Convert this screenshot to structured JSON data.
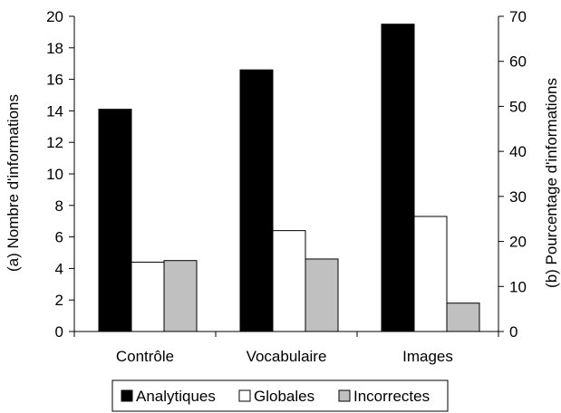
{
  "chart_data": {
    "type": "bar",
    "categories": [
      "Contrôle",
      "Vocabulaire",
      "Images"
    ],
    "series": [
      {
        "name": "Analytiques",
        "values": [
          14.1,
          16.6,
          19.5
        ],
        "color": "#000000"
      },
      {
        "name": "Globales",
        "values": [
          4.4,
          6.4,
          7.3
        ],
        "color": "#ffffff"
      },
      {
        "name": "Incorrectes",
        "values": [
          4.5,
          4.6,
          1.8
        ],
        "color": "#c0c0c0"
      }
    ],
    "ylabel": "(a) Nombre d'informations",
    "ylim": [
      0,
      20
    ],
    "yticks": [
      "0",
      "2",
      "4",
      "6",
      "8",
      "10",
      "12",
      "14",
      "16",
      "18",
      "20"
    ],
    "y2label": "(b) Pourcentage d'informations",
    "y2lim": [
      0,
      70
    ],
    "y2ticks": [
      "0",
      "10",
      "20",
      "30",
      "40",
      "50",
      "60",
      "70"
    ],
    "grid": false,
    "legend_position": "bottom"
  }
}
